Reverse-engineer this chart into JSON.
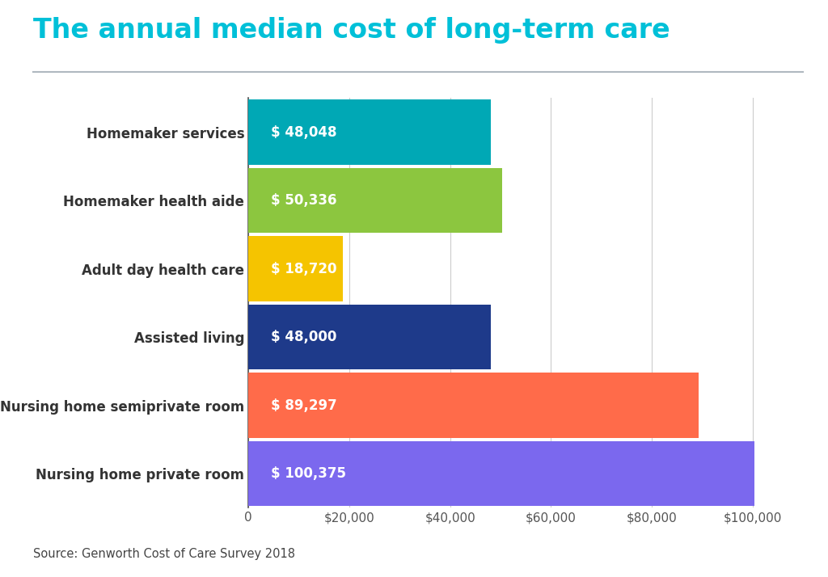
{
  "title": "The annual median cost of long-term care",
  "title_color": "#00c0d8",
  "title_fontsize": 24,
  "source_text": "Source: Genworth Cost of Care Survey 2018",
  "categories": [
    "Nursing home private room",
    "Nursing home semiprivate room",
    "Assisted living",
    "Adult day health care",
    "Homemaker health aide",
    "Homemaker services"
  ],
  "values": [
    100375,
    89297,
    48000,
    18720,
    50336,
    48048
  ],
  "bar_colors": [
    "#7B68EE",
    "#FF6B4A",
    "#1E3A8A",
    "#F5C400",
    "#8CC63F",
    "#00A8B5"
  ],
  "label_texts": [
    "$ 100,375",
    "$ 89,297",
    "$ 48,000",
    "$ 18,720",
    "$ 50,336",
    "$ 48,048"
  ],
  "label_color": "#ffffff",
  "label_fontsize": 12,
  "xlim": [
    0,
    110000
  ],
  "xticks": [
    0,
    20000,
    40000,
    60000,
    80000,
    100000
  ],
  "xtick_labels": [
    "0",
    "$20,000",
    "$40,000",
    "$60,000",
    "$80,000",
    "$100,000"
  ],
  "background_color": "#ffffff",
  "bar_height": 0.95,
  "ylabel_fontsize": 12,
  "xtick_fontsize": 11,
  "grid_color": "#cccccc",
  "separator_line_color": "#b0b8c0"
}
